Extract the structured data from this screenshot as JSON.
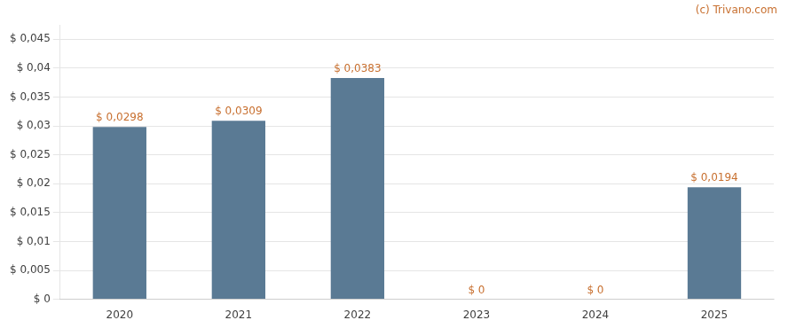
{
  "chart_data": {
    "type": "bar",
    "categories": [
      "2020",
      "2021",
      "2022",
      "2023",
      "2024",
      "2025"
    ],
    "values": [
      0.0298,
      0.0309,
      0.0383,
      0.0,
      0.0,
      0.0194
    ],
    "value_labels": [
      "$ 0,0298",
      "$ 0,0309",
      "$ 0,0383",
      "$ 0",
      "$ 0",
      "$ 0,0194"
    ],
    "color": "#5a7a94",
    "data_labels": true,
    "ylim": [
      0,
      0.0475
    ],
    "yticks": [
      {
        "value": 0,
        "label": "$ 0"
      },
      {
        "value": 0.005,
        "label": "$ 0,005"
      },
      {
        "value": 0.01,
        "label": "$ 0,01"
      },
      {
        "value": 0.015,
        "label": "$ 0,015"
      },
      {
        "value": 0.02,
        "label": "$ 0,02"
      },
      {
        "value": 0.025,
        "label": "$ 0,025"
      },
      {
        "value": 0.03,
        "label": "$ 0,03"
      },
      {
        "value": 0.035,
        "label": "$ 0,035"
      },
      {
        "value": 0.04,
        "label": "$ 0,04"
      },
      {
        "value": 0.045,
        "label": "$ 0,045"
      }
    ],
    "grid": true,
    "annotations": [
      "(c) Trivano.com"
    ]
  }
}
